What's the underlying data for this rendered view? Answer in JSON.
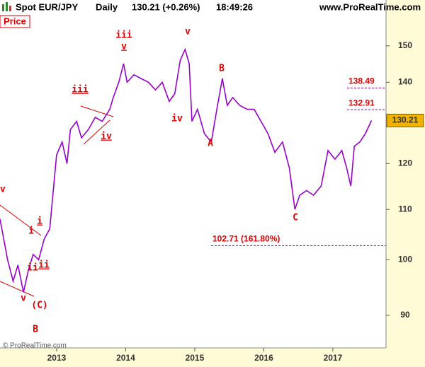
{
  "chart_data": {
    "type": "line",
    "title": "Spot EUR/JPY",
    "interval": "Daily",
    "quote": "130.21 (+0.26%)",
    "time": "18:49:26",
    "source": "www.ProRealTime.com",
    "panel_label": "Price",
    "copyright": "© ProRealTime.com",
    "log_scale": true,
    "grid": false,
    "x": [
      2012.18,
      2012.29,
      2012.37,
      2012.44,
      2012.52,
      2012.59,
      2012.66,
      2012.74,
      2012.82,
      2012.9,
      2013.0,
      2013.08,
      2013.15,
      2013.2,
      2013.29,
      2013.36,
      2013.46,
      2013.56,
      2013.66,
      2013.77,
      2013.82,
      2013.9,
      2013.97,
      2014.02,
      2014.12,
      2014.22,
      2014.33,
      2014.43,
      2014.53,
      2014.63,
      2014.71,
      2014.79,
      2014.86,
      2014.92,
      2014.96,
      2015.04,
      2015.14,
      2015.24,
      2015.33,
      2015.4,
      2015.47,
      2015.55,
      2015.65,
      2015.76,
      2015.86,
      2015.96,
      2016.06,
      2016.16,
      2016.27,
      2016.37,
      2016.45,
      2016.52,
      2016.62,
      2016.72,
      2016.83,
      2016.93,
      2017.03,
      2017.13,
      2017.2,
      2017.26,
      2017.31,
      2017.39,
      2017.47,
      2017.56
    ],
    "series": [
      {
        "name": "EUR/JPY",
        "color": "#9900cc",
        "values": [
          108,
          100,
          96,
          99,
          94,
          98,
          101,
          100,
          104,
          106,
          122,
          125,
          120,
          128,
          130,
          126,
          128,
          131,
          130,
          133,
          136,
          140,
          145,
          140,
          142,
          141,
          140,
          138,
          140,
          135,
          137,
          146,
          149,
          145,
          130,
          133,
          127,
          125,
          134,
          141,
          134,
          136,
          134,
          133,
          133,
          130,
          127,
          122.6,
          125,
          119,
          110,
          113,
          114,
          113,
          115,
          123,
          121,
          123,
          119,
          115,
          124,
          125,
          127,
          130.21
        ]
      }
    ],
    "last_price": 130.21,
    "xlim": [
      2012.18,
      2017.77
    ],
    "xticks": [
      2013,
      2014,
      2015,
      2016,
      2017
    ],
    "ylim": [
      84.6,
      159.3
    ],
    "yticks": [
      90,
      100,
      110,
      120,
      140,
      150
    ],
    "levels": [
      138.49,
      132.91,
      {
        "value": 102.71,
        "label": "102.71 (161.80%)"
      }
    ],
    "annotations": [
      "iv",
      "i",
      "i",
      "ii",
      "ii",
      "v",
      "(C)",
      "B",
      "iii",
      "iv",
      "iii",
      "v",
      "v",
      "iv",
      "B",
      "A",
      "C"
    ]
  }
}
